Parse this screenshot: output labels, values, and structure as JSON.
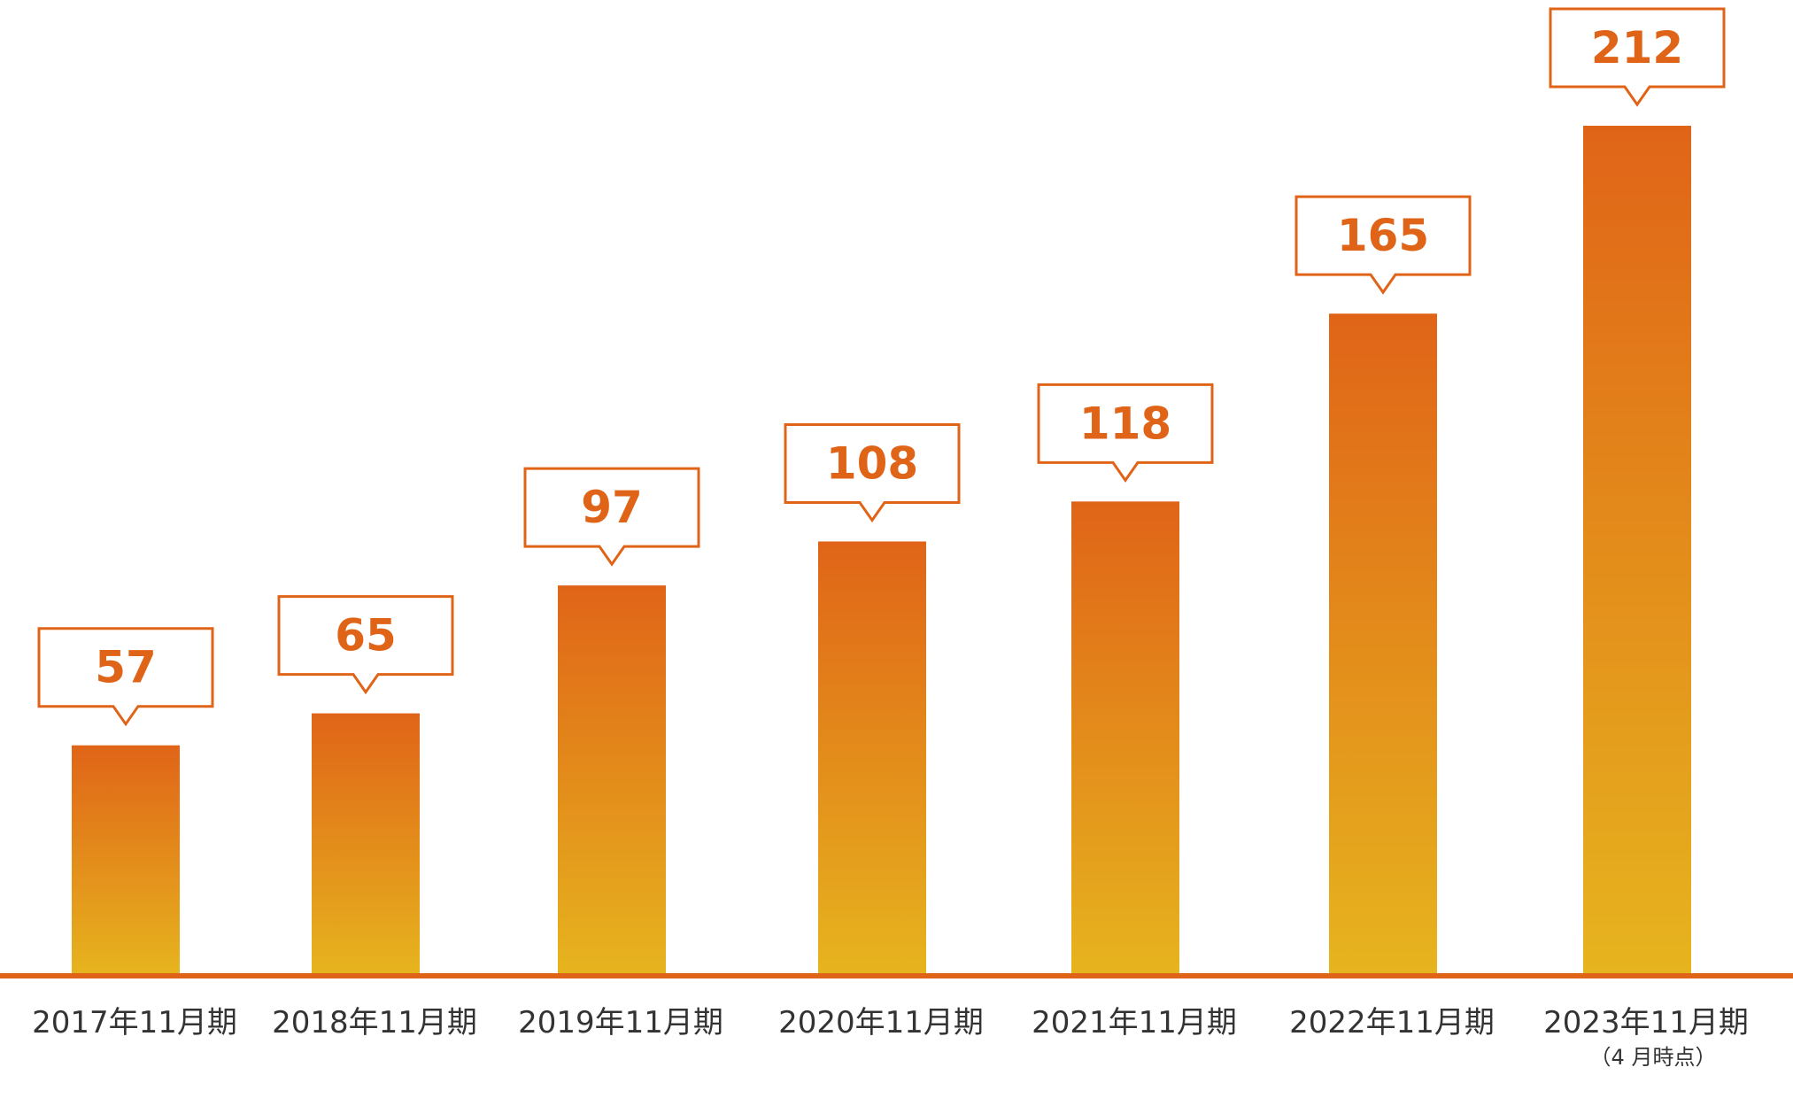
{
  "chart_data": {
    "type": "bar",
    "categories": [
      "2017年11月期",
      "2018年11月期",
      "2019年11月期",
      "2020年11月期",
      "2021年11月期",
      "2022年11月期",
      "2023年11月期"
    ],
    "category_notes": [
      "",
      "",
      "",
      "",
      "",
      "",
      "（4 月時点）"
    ],
    "values": [
      57,
      65,
      97,
      108,
      118,
      165,
      212
    ],
    "data_labels": [
      "57",
      "65",
      "97",
      "108",
      "118",
      "165",
      "212"
    ],
    "title": "",
    "xlabel": "",
    "ylabel": "",
    "ylim": [
      0,
      212
    ],
    "grid": false,
    "legend": "none"
  },
  "colors": {
    "bar_top": "#e06418",
    "bar_bottom": "#e6b41e",
    "baseline": "#e06418",
    "label_text": "#e06418",
    "callout_border": "#e06418",
    "axis_text": "#333333"
  }
}
